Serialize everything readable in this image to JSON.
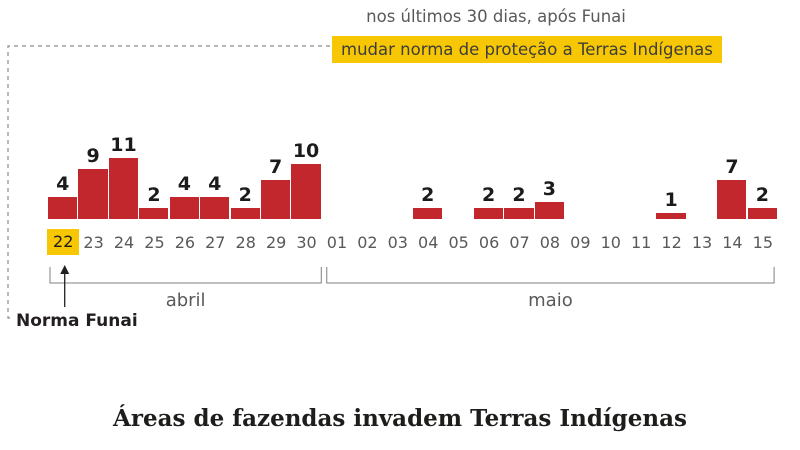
{
  "annotation": {
    "line1": "nos últimos 30 dias, após Funai",
    "line2": "mudar norma de proteção a Terras Indígenas"
  },
  "callout_label": "Norma Funai",
  "title": "Áreas de fazendas invadem Terras Indígenas",
  "colors": {
    "bar_red": "#c1272d",
    "highlight_yellow": "#f6c702",
    "gray_text": "#58595b",
    "dark_text": "#231f20",
    "bracket_gray": "#8a8a8a"
  },
  "chart_data": {
    "type": "bar",
    "title": "Áreas de fazendas invadem Terras Indígenas",
    "subtitle": "nos últimos 30 dias, após Funai mudar norma de proteção a Terras Indígenas",
    "categories": [
      "22",
      "23",
      "24",
      "25",
      "26",
      "27",
      "28",
      "29",
      "30",
      "01",
      "02",
      "03",
      "04",
      "05",
      "06",
      "07",
      "08",
      "09",
      "10",
      "11",
      "12",
      "13",
      "14",
      "15"
    ],
    "values": [
      4,
      9,
      11,
      2,
      4,
      4,
      2,
      7,
      10,
      0,
      0,
      0,
      2,
      0,
      2,
      2,
      3,
      0,
      0,
      0,
      1,
      0,
      7,
      2
    ],
    "highlighted_category": "22",
    "highlight_annotation": "Norma Funai",
    "months": [
      {
        "label": "abril",
        "span": [
          0,
          8
        ]
      },
      {
        "label": "maio",
        "span": [
          9,
          23
        ]
      }
    ],
    "ylim": [
      0,
      11
    ],
    "value_labels_shown": true,
    "grid": false,
    "legend": false
  }
}
